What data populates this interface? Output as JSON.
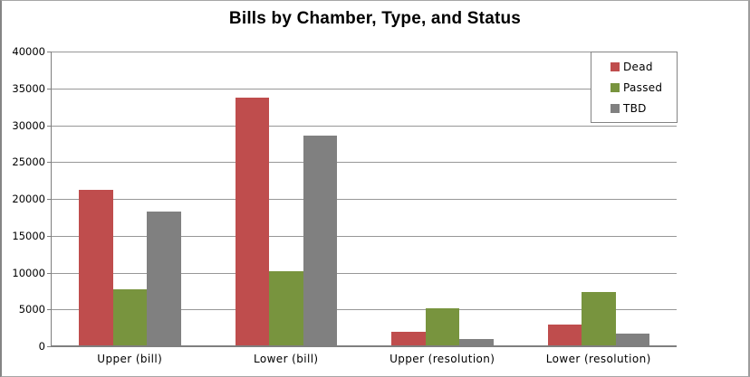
{
  "chart": {
    "title": "Bills by Chamber, Type, and Status"
  },
  "chart_data": {
    "type": "bar",
    "title": "Bills by Chamber, Type, and Status",
    "categories": [
      "Upper (bill)",
      "Lower (bill)",
      "Upper (resolution)",
      "Lower (resolution)"
    ],
    "series": [
      {
        "name": "Dead",
        "color": "#BF4D4D",
        "values": [
          21200,
          33700,
          2000,
          2900
        ]
      },
      {
        "name": "Passed",
        "color": "#78943E",
        "values": [
          7700,
          10200,
          5100,
          7400
        ]
      },
      {
        "name": "TBD",
        "color": "#808080",
        "values": [
          18300,
          28600,
          1000,
          1750
        ]
      }
    ],
    "xlabel": "",
    "ylabel": "",
    "ylim": [
      0,
      40000
    ],
    "ytick_interval": 5000,
    "ytick_labels": [
      "0",
      "5000",
      "10000",
      "15000",
      "20000",
      "25000",
      "30000",
      "35000",
      "40000"
    ],
    "grid": true,
    "legend_position": "top-right",
    "colors": {
      "gridline": "#979797",
      "axis": "#7f7f7f",
      "background": "#ffffff"
    }
  }
}
